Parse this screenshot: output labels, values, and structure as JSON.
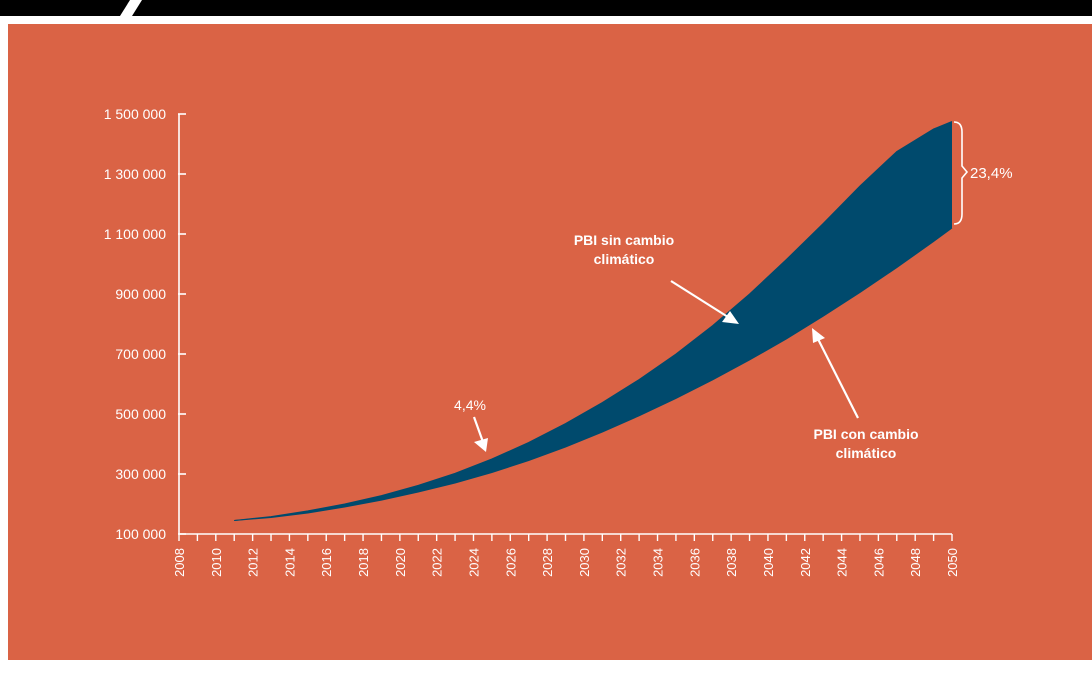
{
  "colors": {
    "background": "#DA6345",
    "band": "#004A6D",
    "text": "#FFFFFF",
    "top_bar": "#000000"
  },
  "chart_data": {
    "type": "area",
    "title": "",
    "xlabel": "",
    "ylabel": "",
    "x_range": [
      2008,
      2050
    ],
    "y_range": [
      100000,
      1500000
    ],
    "grid": false,
    "x_tick_labels": [
      "2008",
      "2010",
      "2012",
      "2014",
      "2016",
      "2018",
      "2020",
      "2022",
      "2024",
      "2026",
      "2028",
      "2030",
      "2032",
      "2034",
      "2036",
      "2038",
      "2040",
      "2042",
      "2044",
      "2046",
      "2048",
      "2050"
    ],
    "y_tick_labels": [
      "1 500 000",
      "1 300 000",
      "1 100 000",
      "900 000",
      "700 000",
      "500 000",
      "300 000",
      "100 000"
    ],
    "y_tick_values": [
      1500000,
      1300000,
      1100000,
      900000,
      700000,
      500000,
      300000,
      100000
    ],
    "x": [
      2011,
      2013,
      2015,
      2017,
      2019,
      2021,
      2023,
      2025,
      2027,
      2029,
      2031,
      2033,
      2035,
      2037,
      2039,
      2041,
      2043,
      2045,
      2047,
      2049,
      2050
    ],
    "series": [
      {
        "values": [
          145000,
          158000,
          177000,
          200000,
          228000,
          262000,
          302000,
          350000,
          405000,
          468000,
          538000,
          615000,
          700000,
          795000,
          900000,
          1015000,
          1135000,
          1260000,
          1375000,
          1450000,
          1475000
        ]
      },
      {
        "values": [
          145000,
          155000,
          170000,
          190000,
          213000,
          240000,
          270000,
          305000,
          345000,
          390000,
          440000,
          494000,
          552000,
          614000,
          680000,
          750000,
          826000,
          905000,
          988000,
          1075000,
          1120000
        ]
      }
    ],
    "annotations": [
      {
        "text": "4,4%"
      },
      {
        "line1": "PBI sin cambio",
        "line2": "climático"
      },
      {
        "line1": "PBI con cambio",
        "line2": "climático"
      },
      {
        "text": "23,4%"
      }
    ]
  }
}
